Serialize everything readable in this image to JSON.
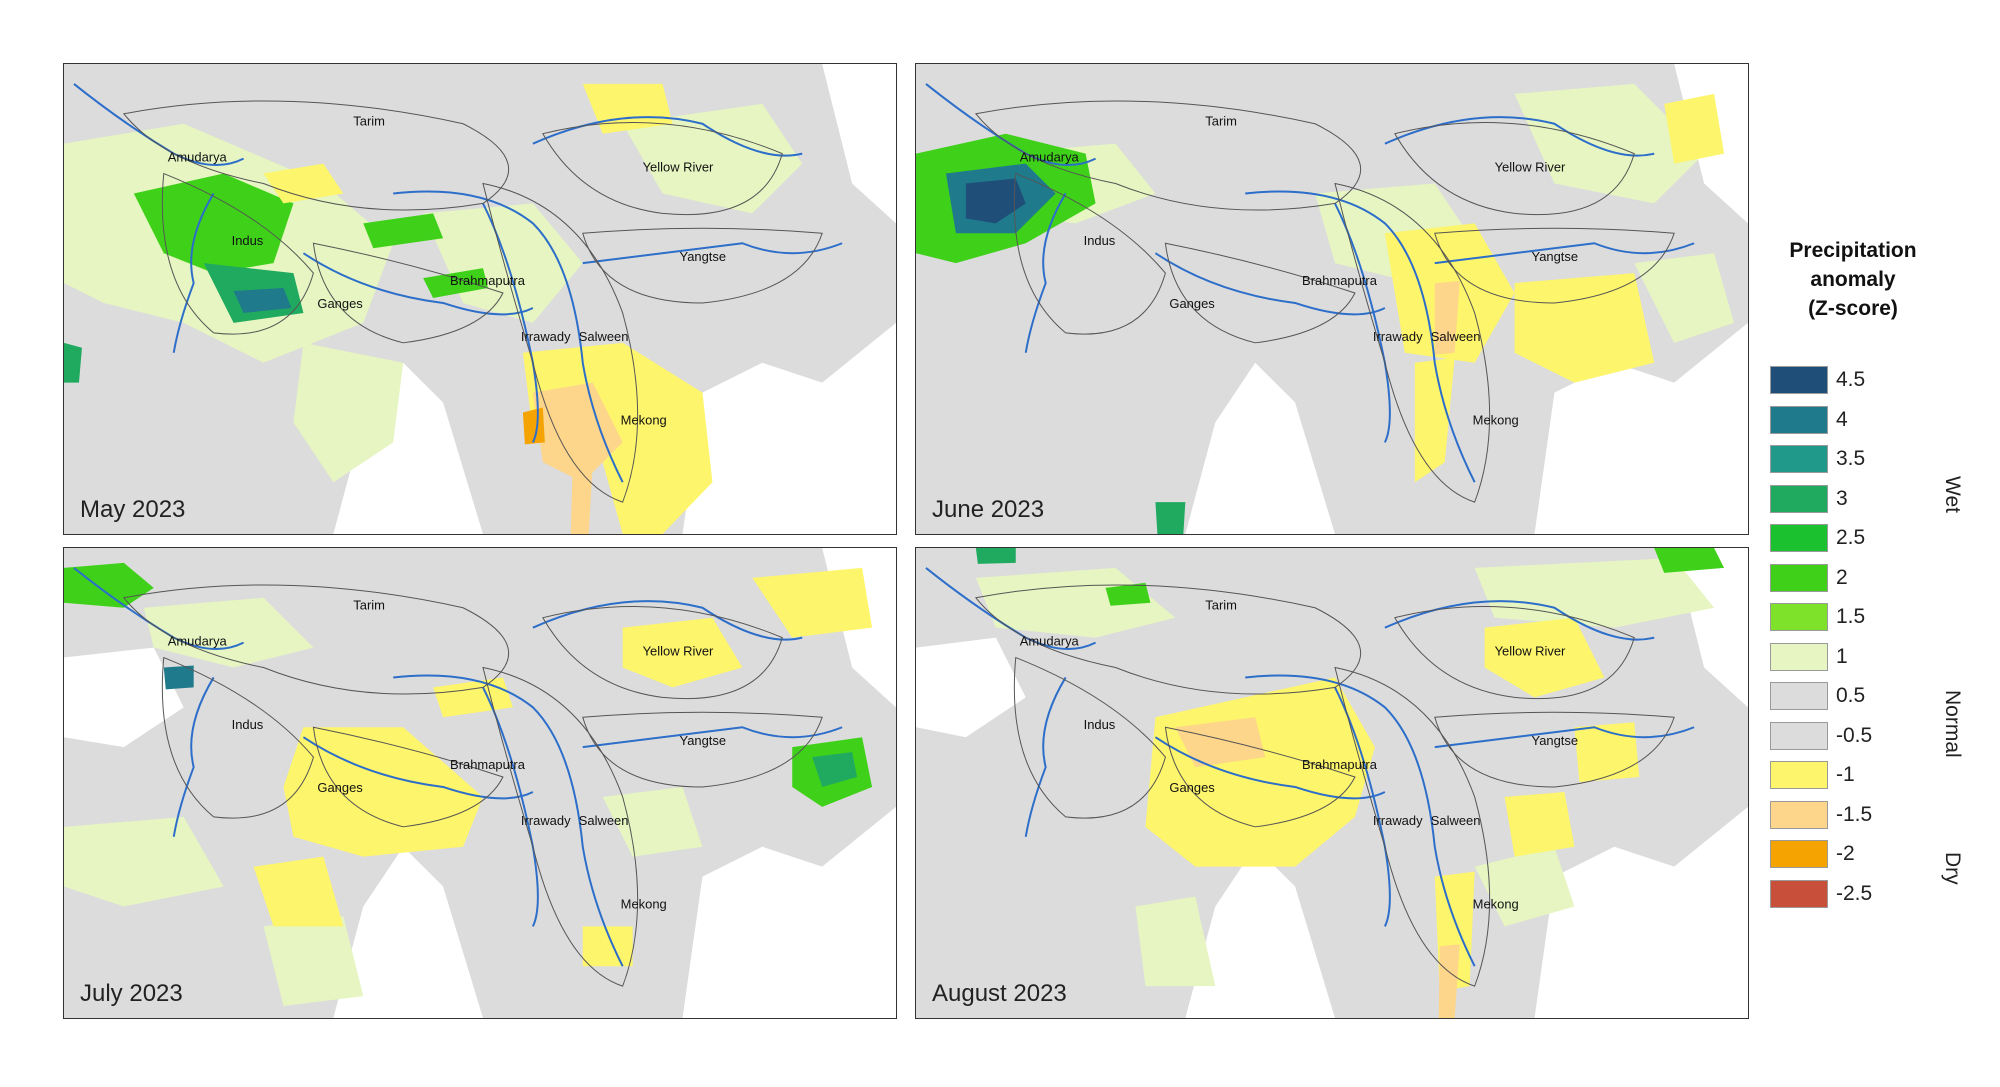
{
  "panels": [
    {
      "label": "May 2023"
    },
    {
      "label": "June 2023"
    },
    {
      "label": "July 2023"
    },
    {
      "label": "August 2023"
    }
  ],
  "basins": [
    "Amudarya",
    "Tarim",
    "Yellow River",
    "Indus",
    "Yangtse",
    "Brahmaputra",
    "Ganges",
    "Irrawady",
    "Salween",
    "Mekong"
  ],
  "legend": {
    "title_lines": [
      "Precipitation",
      "anomaly",
      "(Z-score)"
    ],
    "items": [
      {
        "value": "4.5",
        "color": "#1f4e79"
      },
      {
        "value": "4",
        "color": "#1f7a8c"
      },
      {
        "value": "3.5",
        "color": "#21998a"
      },
      {
        "value": "3",
        "color": "#1faa5f"
      },
      {
        "value": "2.5",
        "color": "#1cc12f"
      },
      {
        "value": "2",
        "color": "#3fd11a"
      },
      {
        "value": "1.5",
        "color": "#7fe22a"
      },
      {
        "value": "1",
        "color": "#e6f5c1"
      },
      {
        "value": "0.5",
        "color": "#dcdcdc"
      },
      {
        "value": "-0.5",
        "color": "#dcdcdc"
      },
      {
        "value": "-1",
        "color": "#fdf56b"
      },
      {
        "value": "-1.5",
        "color": "#fdd58b"
      },
      {
        "value": "-2",
        "color": "#f5a300"
      },
      {
        "value": "-2.5",
        "color": "#c8503a"
      }
    ],
    "categories": [
      "Wet",
      "Normal",
      "Dry"
    ]
  }
}
